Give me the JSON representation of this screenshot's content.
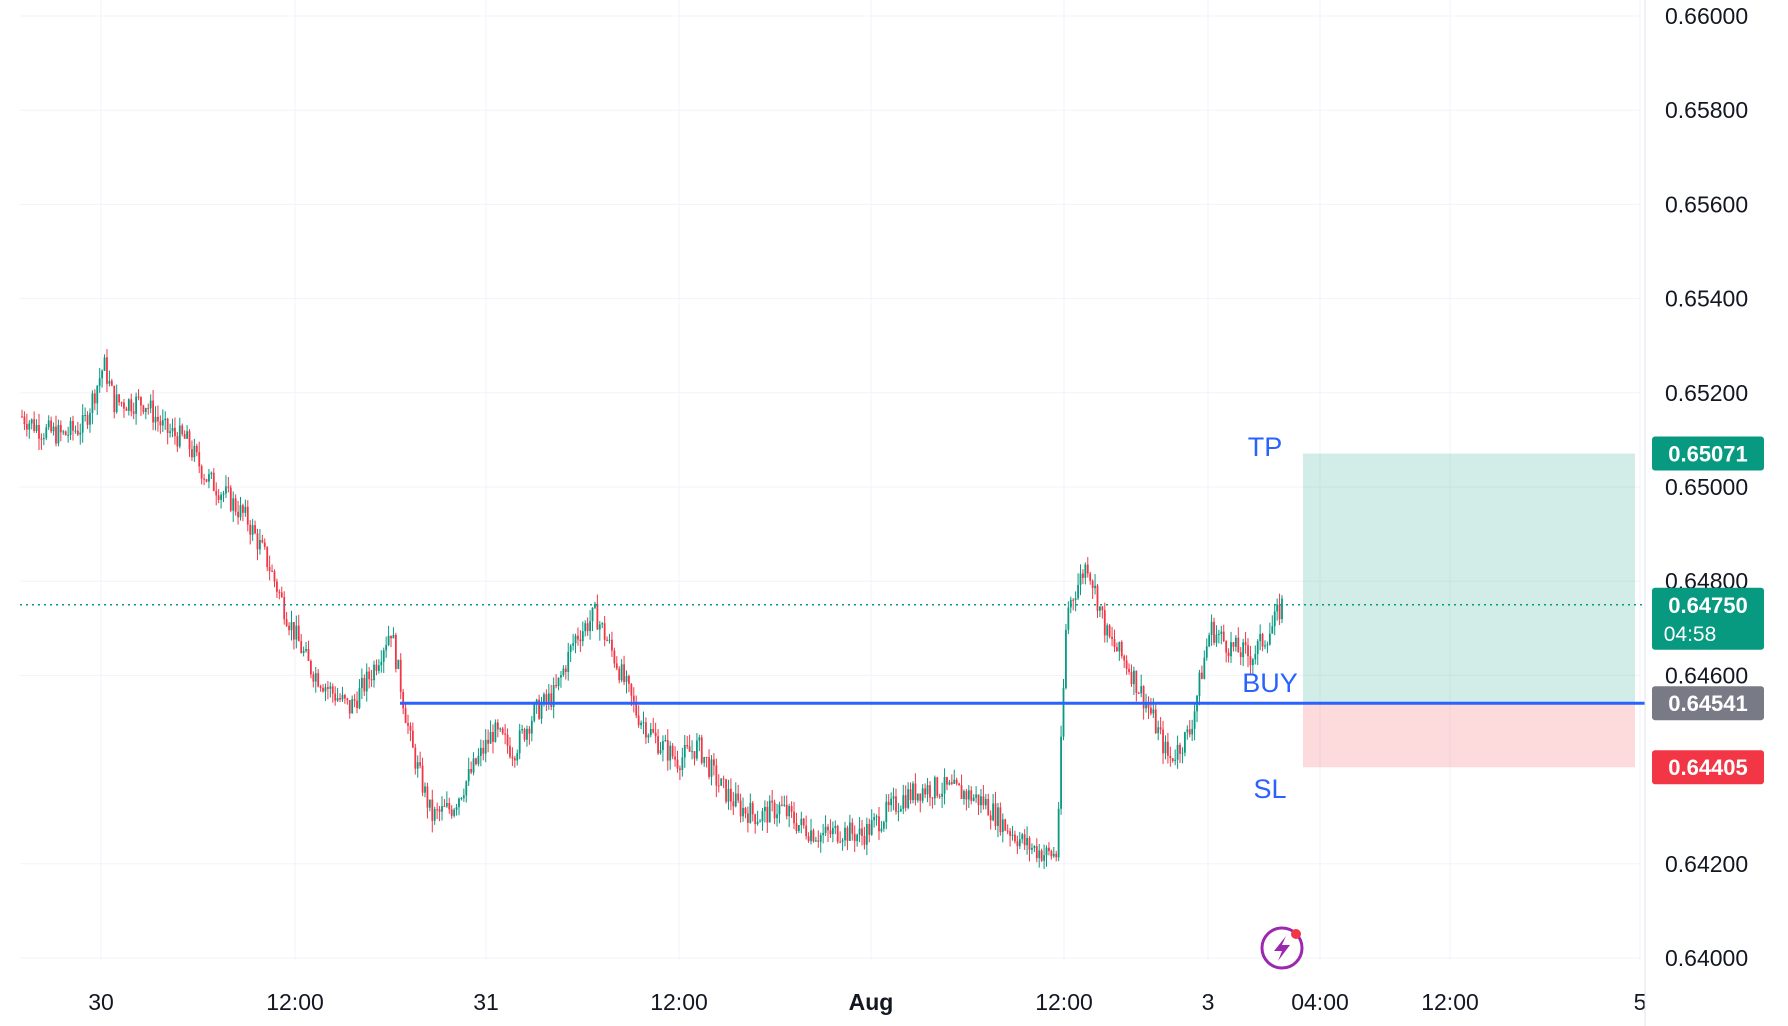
{
  "colors": {
    "up": "#089981",
    "down": "#f23645",
    "entry_line": "#2962ff",
    "entry_label_bg": "#787b86",
    "tp_label_bg": "#089981",
    "sl_label_bg": "#f23645",
    "profit_zone": "rgba(8,153,129,0.18)",
    "loss_zone": "rgba(242,54,69,0.18)",
    "tool_text": "#2962ff",
    "badge": "#9c27b0"
  },
  "icons": {
    "replay_badge": "lightning-icon"
  },
  "price_axis": {
    "ticks": [
      "0.66000",
      "0.65800",
      "0.65600",
      "0.65400",
      "0.65200",
      "0.65000",
      "0.64800",
      "0.64600",
      "0.64200",
      "0.64000"
    ]
  },
  "time_axis": {
    "ticks": [
      {
        "label": "30",
        "bold": false
      },
      {
        "label": "12:00",
        "bold": false
      },
      {
        "label": "31",
        "bold": false
      },
      {
        "label": "12:00",
        "bold": false
      },
      {
        "label": "Aug",
        "bold": true
      },
      {
        "label": "12:00",
        "bold": false
      },
      {
        "label": "3",
        "bold": false
      },
      {
        "label": "04:00",
        "bold": false
      },
      {
        "label": "12:00",
        "bold": false
      },
      {
        "label": "5",
        "bold": false
      }
    ]
  },
  "labels": {
    "tp": "TP",
    "buy": "BUY",
    "sl": "SL",
    "tp_price": "0.65071",
    "current_price": "0.64750",
    "countdown": "04:58",
    "entry_price": "0.64541",
    "sl_price": "0.64405"
  },
  "chart_data": {
    "type": "candlestick",
    "y_range": [
      0.6396,
      0.6604
    ],
    "price_ticks": [
      0.66,
      0.658,
      0.656,
      0.654,
      0.652,
      0.65,
      0.648,
      0.646,
      0.642,
      0.64
    ],
    "grid": true,
    "current_price": 0.6475,
    "position": {
      "side": "long",
      "entry": 0.64541,
      "take_profit": 0.65071,
      "stop_loss": 0.64405
    },
    "series_path": [
      [
        0,
        0.6515
      ],
      [
        2,
        0.6512
      ],
      [
        4,
        0.6511
      ],
      [
        6,
        0.6513
      ],
      [
        8,
        0.6526
      ],
      [
        9,
        0.6518
      ],
      [
        12,
        0.6518
      ],
      [
        14,
        0.6512
      ],
      [
        16,
        0.651
      ],
      [
        18,
        0.6502
      ],
      [
        20,
        0.6498
      ],
      [
        22,
        0.6493
      ],
      [
        24,
        0.6484
      ],
      [
        26,
        0.6472
      ],
      [
        28,
        0.6462
      ],
      [
        30,
        0.6457
      ],
      [
        32,
        0.6453
      ],
      [
        34,
        0.646
      ],
      [
        36,
        0.647
      ],
      [
        38,
        0.6445
      ],
      [
        40,
        0.643
      ],
      [
        42,
        0.6432
      ],
      [
        44,
        0.644
      ],
      [
        46,
        0.6448
      ],
      [
        48,
        0.6444
      ],
      [
        50,
        0.6452
      ],
      [
        52,
        0.6456
      ],
      [
        54,
        0.6468
      ],
      [
        56,
        0.6473
      ],
      [
        58,
        0.6463
      ],
      [
        60,
        0.6452
      ],
      [
        62,
        0.6446
      ],
      [
        64,
        0.6442
      ],
      [
        66,
        0.6445
      ],
      [
        68,
        0.6437
      ],
      [
        70,
        0.6432
      ],
      [
        72,
        0.643
      ],
      [
        74,
        0.6432
      ],
      [
        76,
        0.6428
      ],
      [
        78,
        0.6426
      ],
      [
        80,
        0.6427
      ],
      [
        82,
        0.6426
      ],
      [
        84,
        0.643
      ],
      [
        86,
        0.6434
      ],
      [
        88,
        0.6436
      ],
      [
        90,
        0.6436
      ],
      [
        92,
        0.6435
      ],
      [
        94,
        0.6433
      ],
      [
        96,
        0.6428
      ],
      [
        98,
        0.6424
      ],
      [
        100,
        0.6422
      ],
      [
        101,
        0.6422
      ],
      [
        102,
        0.6474
      ],
      [
        104,
        0.6484
      ],
      [
        106,
        0.6468
      ],
      [
        108,
        0.6462
      ],
      [
        110,
        0.6453
      ],
      [
        112,
        0.6442
      ],
      [
        114,
        0.6448
      ],
      [
        116,
        0.647
      ],
      [
        118,
        0.6466
      ],
      [
        120,
        0.6464
      ],
      [
        122,
        0.647
      ],
      [
        123,
        0.6475
      ]
    ],
    "x_range": [
      0,
      123
    ]
  }
}
